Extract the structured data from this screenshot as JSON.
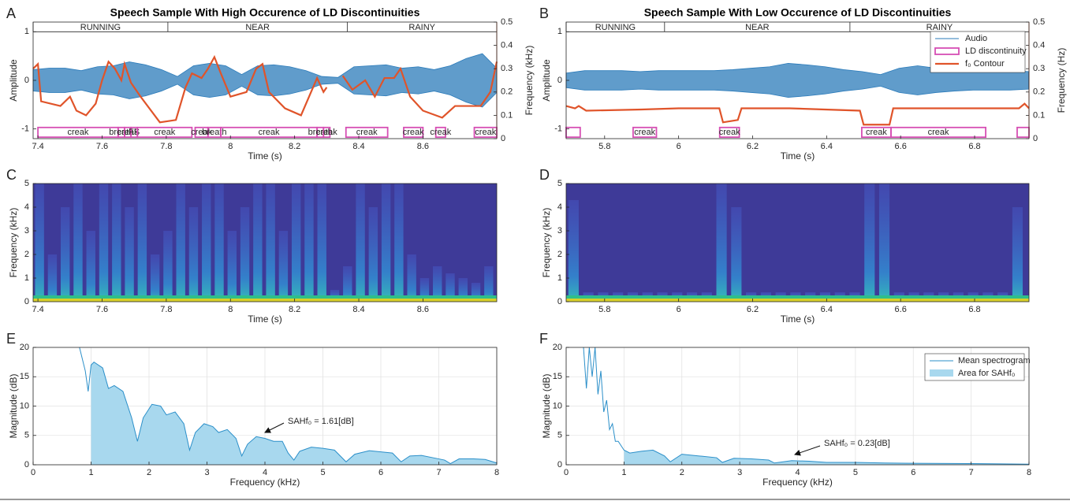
{
  "chart_data": [
    {
      "type": "waveform",
      "label": "A",
      "title": "Speech Sample With High Occurence of LD Discontinuities",
      "xlabel": "Time (s)",
      "ylabel": "Amplitude",
      "y2label": "Frequency (kHz)",
      "xlim": [
        7.385,
        8.83
      ],
      "xticks": [
        7.4,
        7.6,
        7.8,
        8,
        8.2,
        8.4,
        8.6
      ],
      "ylim": [
        -1.2,
        1.2
      ],
      "yticks": [
        -1,
        0,
        1
      ],
      "y2lim": [
        0,
        0.5
      ],
      "y2ticks": [
        0,
        0.1,
        0.2,
        0.3,
        0.4,
        0.5
      ],
      "words": [
        {
          "text": "RUNNING",
          "start": 7.385,
          "end": 7.805
        },
        {
          "text": "NEAR",
          "start": 7.805,
          "end": 8.364
        },
        {
          "text": "RAINY",
          "start": 8.364,
          "end": 8.83
        }
      ],
      "series": [
        {
          "color": "#2b7bba",
          "x": [
            7.385,
            7.435,
            7.485,
            7.535,
            7.585,
            7.635,
            7.685,
            7.735,
            7.785,
            7.835,
            7.885,
            7.935,
            7.985,
            8.035,
            8.085,
            8.135,
            8.185,
            8.235,
            8.285,
            8.335,
            8.385,
            8.435,
            8.485,
            8.535,
            8.585,
            8.635,
            8.685,
            8.735,
            8.785,
            8.83
          ],
          "values": [
            0.22,
            0.25,
            0.25,
            0.2,
            0.28,
            0.3,
            0.38,
            0.32,
            0.22,
            0.08,
            0.3,
            0.35,
            0.3,
            0.12,
            0.3,
            0.32,
            0.28,
            0.2,
            0.08,
            0.06,
            0.28,
            0.3,
            0.32,
            0.25,
            0.28,
            0.22,
            0.3,
            0.45,
            0.55,
            0.25
          ]
        },
        {
          "color": "#e0542a",
          "axis": "y2",
          "x": [
            7.385,
            7.4,
            7.41,
            7.47,
            7.5,
            7.52,
            7.55,
            7.58,
            7.6,
            7.62,
            7.64,
            7.66,
            7.67,
            7.69,
            7.72,
            7.78,
            7.83,
            7.86,
            7.88,
            7.91,
            7.93,
            7.95,
            7.97,
            8.0,
            8.05,
            8.08,
            8.1,
            8.12,
            8.17,
            8.22,
            8.27,
            8.29,
            8.3,
            8.31,
            8.35,
            8.38,
            8.42,
            8.45,
            8.48,
            8.51,
            8.53,
            8.56,
            8.6,
            8.66,
            8.7,
            8.78,
            8.81,
            8.83
          ],
          "values": [
            0.3,
            0.32,
            0.16,
            0.14,
            0.18,
            0.12,
            0.1,
            0.15,
            0.25,
            0.33,
            0.3,
            0.25,
            0.32,
            0.24,
            0.18,
            0.07,
            0.08,
            0.22,
            0.28,
            0.26,
            0.3,
            0.35,
            0.28,
            0.18,
            0.2,
            0.3,
            0.32,
            0.2,
            0.13,
            0.1,
            0.26,
            0.2,
            0.22,
            null,
            0.27,
            0.21,
            0.25,
            0.18,
            0.26,
            0.26,
            0.3,
            0.18,
            0.12,
            0.09,
            0.14,
            0.14,
            0.2,
            0.33
          ]
        }
      ],
      "intervals": {
        "color": "#d64fb4",
        "items": [
          {
            "start": 7.4,
            "end": 7.65,
            "label": "creak"
          },
          {
            "start": 7.65,
            "end": 7.67,
            "label": "breath"
          },
          {
            "start": 7.67,
            "end": 7.69,
            "label": "creak"
          },
          {
            "start": 7.69,
            "end": 7.71,
            "label": "FS"
          },
          {
            "start": 7.71,
            "end": 7.88,
            "label": "creak"
          },
          {
            "start": 7.89,
            "end": 7.93,
            "label": "creak"
          },
          {
            "start": 7.93,
            "end": 7.97,
            "label": "breath"
          },
          {
            "start": 7.97,
            "end": 8.27,
            "label": "creak"
          },
          {
            "start": 8.27,
            "end": 8.29,
            "label": "breath"
          },
          {
            "start": 8.29,
            "end": 8.31,
            "label": "creak"
          },
          {
            "start": 8.36,
            "end": 8.49,
            "label": "creak"
          },
          {
            "start": 8.54,
            "end": 8.6,
            "label": "creak"
          },
          {
            "start": 8.64,
            "end": 8.67,
            "label": "creak"
          },
          {
            "start": 8.76,
            "end": 8.83,
            "label": "creak"
          }
        ]
      }
    },
    {
      "type": "waveform",
      "label": "B",
      "title": "Speech Sample With Low Occurence of LD Discontinuities",
      "xlabel": "Time (s)",
      "ylabel": "Amplitude",
      "y2label": "Frequency (Hz)",
      "xlim": [
        5.696,
        6.947
      ],
      "xticks": [
        5.8,
        6,
        6.2,
        6.4,
        6.6,
        6.8
      ],
      "ylim": [
        -1.2,
        1.2
      ],
      "yticks": [
        -1,
        0,
        1
      ],
      "y2lim": [
        0,
        0.5
      ],
      "y2ticks": [
        0,
        0.1,
        0.2,
        0.3,
        0.4,
        0.5
      ],
      "legend": "upper right",
      "words": [
        {
          "text": "RUNNING",
          "start": 5.696,
          "end": 5.962
        },
        {
          "text": "NEAR",
          "start": 5.962,
          "end": 6.463
        },
        {
          "text": "RAINY",
          "start": 6.463,
          "end": 6.947
        }
      ],
      "series": [
        {
          "name": "Audio",
          "color": "#2b7bba",
          "x": [
            5.696,
            5.746,
            5.796,
            5.846,
            5.896,
            5.946,
            5.996,
            6.046,
            6.096,
            6.146,
            6.196,
            6.246,
            6.296,
            6.346,
            6.396,
            6.446,
            6.496,
            6.546,
            6.596,
            6.646,
            6.696,
            6.746,
            6.796,
            6.846,
            6.896,
            6.946
          ],
          "values": [
            0.15,
            0.2,
            0.2,
            0.2,
            0.18,
            0.2,
            0.2,
            0.2,
            0.2,
            0.22,
            0.25,
            0.28,
            0.35,
            0.32,
            0.28,
            0.22,
            0.18,
            0.12,
            0.25,
            0.3,
            0.25,
            0.22,
            0.2,
            0.2,
            0.2,
            0.18
          ]
        },
        {
          "name": "f₀ Contour",
          "color": "#e0542a",
          "axis": "y2",
          "x": [
            5.696,
            5.72,
            5.73,
            5.75,
            5.9,
            6.0,
            6.11,
            6.12,
            6.16,
            6.17,
            6.3,
            6.49,
            6.5,
            6.57,
            6.58,
            6.8,
            6.92,
            6.935,
            6.947
          ],
          "values": [
            0.14,
            0.13,
            0.14,
            0.12,
            0.125,
            0.13,
            0.13,
            0.07,
            0.08,
            0.13,
            0.13,
            0.12,
            0.06,
            0.06,
            0.13,
            0.13,
            0.13,
            0.15,
            0.13
          ]
        }
      ],
      "intervals": {
        "name": "LD discontinuity",
        "color": "#d64fb4",
        "items": [
          {
            "start": 5.696,
            "end": 5.734,
            "label": null
          },
          {
            "start": 5.877,
            "end": 5.94,
            "label": "creak"
          },
          {
            "start": 6.111,
            "end": 6.164,
            "label": "creak"
          },
          {
            "start": 6.495,
            "end": 6.574,
            "label": "creak"
          },
          {
            "start": 6.574,
            "end": 6.83,
            "label": "creak"
          },
          {
            "start": 6.915,
            "end": 6.947,
            "label": null
          }
        ]
      }
    },
    {
      "type": "spectrogram",
      "label": "C",
      "xlabel": "Time (s)",
      "ylabel": "Frequency (kHz)",
      "xlim": [
        7.385,
        8.83
      ],
      "xticks": [
        7.4,
        7.6,
        7.8,
        8,
        8.2,
        8.4,
        8.6
      ],
      "ylim": [
        0,
        5
      ],
      "yticks": [
        0,
        1,
        2,
        3,
        4,
        5
      ],
      "color": "#3e3a98",
      "x": [
        7.385,
        7.425,
        7.465,
        7.505,
        7.545,
        7.585,
        7.625,
        7.665,
        7.705,
        7.745,
        7.785,
        7.825,
        7.865,
        7.905,
        7.945,
        7.985,
        8.025,
        8.065,
        8.105,
        8.145,
        8.185,
        8.225,
        8.265,
        8.305,
        8.345,
        8.385,
        8.425,
        8.465,
        8.505,
        8.545,
        8.585,
        8.625,
        8.665,
        8.705,
        8.745,
        8.785
      ],
      "values": [
        5,
        2,
        4,
        5,
        3,
        5,
        5,
        4,
        5,
        2,
        3,
        5,
        4,
        5,
        5,
        3,
        4,
        5,
        5,
        3,
        5,
        5,
        5,
        0.5,
        1.5,
        5,
        4,
        5,
        5,
        2,
        1,
        1.5,
        1.2,
        1,
        0.8,
        1.5
      ]
    },
    {
      "type": "spectrogram",
      "label": "D",
      "xlabel": "Time (s)",
      "ylabel": "Frequency (kHz)",
      "xlim": [
        5.696,
        6.947
      ],
      "xticks": [
        5.8,
        6,
        6.2,
        6.4,
        6.6,
        6.8
      ],
      "ylim": [
        0,
        5
      ],
      "yticks": [
        0,
        1,
        2,
        3,
        4,
        5
      ],
      "color": "#3e3a98",
      "x": [
        5.696,
        5.736,
        5.776,
        5.816,
        5.856,
        5.896,
        5.936,
        5.976,
        6.016,
        6.056,
        6.096,
        6.136,
        6.176,
        6.216,
        6.256,
        6.296,
        6.336,
        6.376,
        6.416,
        6.456,
        6.496,
        6.536,
        6.576,
        6.616,
        6.656,
        6.696,
        6.736,
        6.776,
        6.816,
        6.856,
        6.896
      ],
      "values": [
        4.3,
        0.4,
        0.4,
        0.4,
        0.4,
        0.4,
        0.4,
        0.4,
        0.4,
        0.4,
        5,
        4,
        0.4,
        0.4,
        0.4,
        0.4,
        0.4,
        0.4,
        0.4,
        0.4,
        5,
        5,
        0.4,
        0.4,
        0.4,
        0.4,
        0.4,
        0.4,
        0.4,
        0.4,
        4
      ]
    },
    {
      "type": "area",
      "label": "E",
      "xlabel": "Frequency (kHz)",
      "ylabel": "Magnitude (dB)",
      "xlim": [
        0,
        8
      ],
      "xticks": [
        0,
        1,
        2,
        3,
        4,
        5,
        6,
        7,
        8
      ],
      "ylim": [
        0,
        20
      ],
      "yticks": [
        0,
        5,
        10,
        15,
        20
      ],
      "grid": true,
      "area_start": 1,
      "color": "#2b8fc9",
      "fill": "#a8d8ee",
      "annotation": "SAHf₀ = 1.61[dB]",
      "x": [
        0.8,
        0.9,
        0.95,
        1.0,
        1.05,
        1.2,
        1.3,
        1.4,
        1.55,
        1.7,
        1.8,
        1.9,
        2.05,
        2.2,
        2.3,
        2.45,
        2.6,
        2.7,
        2.8,
        2.95,
        3.1,
        3.2,
        3.35,
        3.5,
        3.6,
        3.7,
        3.85,
        4.0,
        4.15,
        4.3,
        4.4,
        4.5,
        4.6,
        4.8,
        5.0,
        5.2,
        5.4,
        5.55,
        5.8,
        6.0,
        6.2,
        6.35,
        6.5,
        6.7,
        6.9,
        7.1,
        7.2,
        7.35,
        7.6,
        7.8,
        7.9,
        8
      ],
      "values": [
        20,
        16,
        12.5,
        17,
        17.5,
        16.5,
        13,
        13.5,
        12.5,
        8,
        4,
        8,
        10.3,
        10,
        8.5,
        9,
        7,
        2.5,
        5.5,
        7,
        6.5,
        5.5,
        6,
        4.5,
        1.5,
        3.5,
        4.8,
        4.5,
        4,
        4,
        2,
        0.8,
        2.3,
        3,
        2.8,
        2.5,
        0.5,
        1.8,
        2.4,
        2.2,
        2,
        0.5,
        1.5,
        1.6,
        1.2,
        0.8,
        0.2,
        1,
        1,
        0.9,
        0.6,
        0.3
      ]
    },
    {
      "type": "area",
      "label": "F",
      "xlabel": "Frequency (kHz)",
      "ylabel": "Magnitude (dB)",
      "xlim": [
        0,
        8
      ],
      "xticks": [
        0,
        1,
        2,
        3,
        4,
        5,
        6,
        7,
        8
      ],
      "ylim": [
        0,
        20
      ],
      "yticks": [
        0,
        5,
        10,
        15,
        20
      ],
      "grid": true,
      "area_start": 1,
      "color": "#2b8fc9",
      "fill": "#a8d8ee",
      "annotation": "SAHf₀ = 0.23[dB]",
      "legend": "upper right",
      "line_name": "Mean spectrogram",
      "area_name": "Area for SAHf₀",
      "x": [
        0.3,
        0.35,
        0.4,
        0.45,
        0.5,
        0.55,
        0.6,
        0.65,
        0.7,
        0.75,
        0.8,
        0.85,
        0.9,
        1.0,
        1.1,
        1.3,
        1.5,
        1.7,
        1.8,
        2.0,
        2.3,
        2.6,
        2.7,
        2.9,
        3.2,
        3.5,
        3.6,
        3.9,
        4.2,
        4.5,
        5,
        5.5,
        6,
        7,
        8
      ],
      "values": [
        20,
        13,
        20,
        15,
        20,
        12,
        16,
        9,
        11,
        6,
        7,
        4,
        4,
        2.5,
        2,
        2.3,
        2.5,
        1.5,
        0.5,
        1.8,
        1.5,
        1.2,
        0.4,
        1.1,
        1,
        0.8,
        0.3,
        0.7,
        0.6,
        0.4,
        0.4,
        0.3,
        0.25,
        0.2,
        0.1
      ]
    }
  ]
}
